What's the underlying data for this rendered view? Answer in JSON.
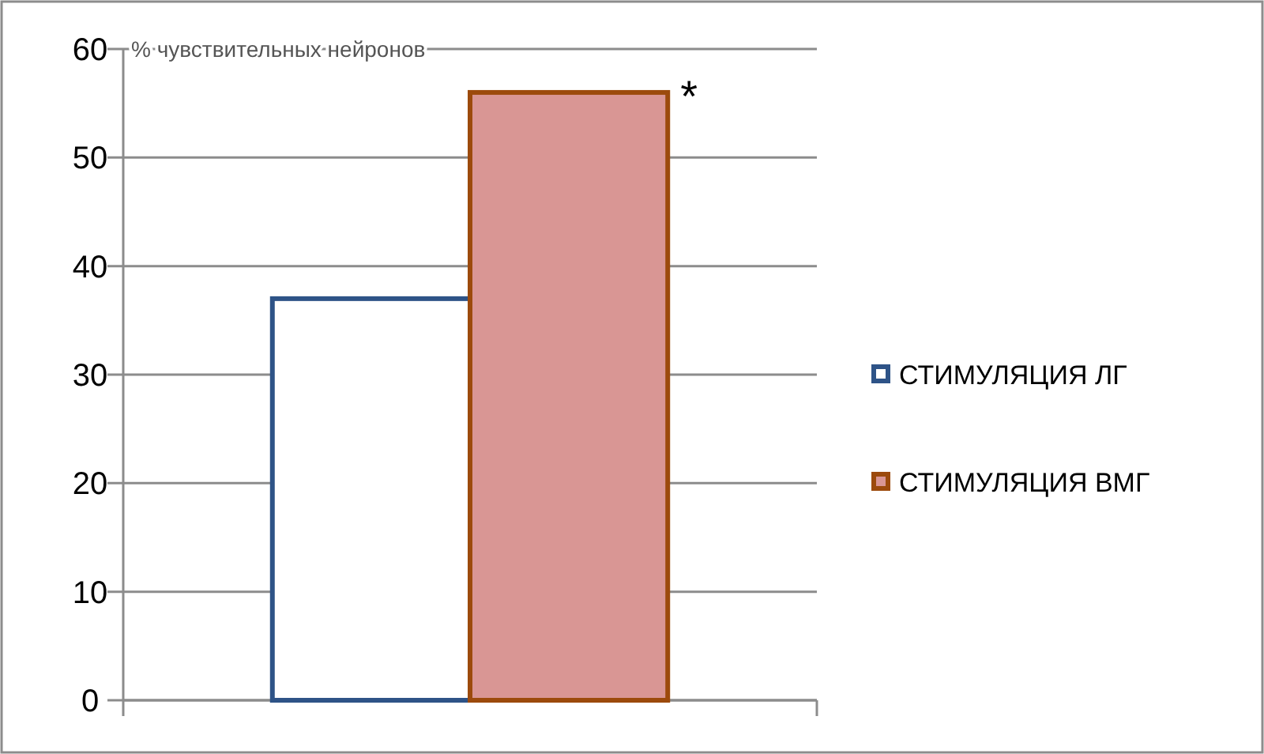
{
  "chart_data": {
    "type": "bar",
    "ylabel": "% чувствительных нейронов",
    "categories": [
      null
    ],
    "series": [
      {
        "name": "СТИМУЛЯЦИЯ ЛГ",
        "color": "#2e5387",
        "values": [
          37
        ]
      },
      {
        "name": "СТИМУЛЯЦИЯ ВМГ",
        "color": "#9c4a0c",
        "values": [
          56
        ]
      }
    ],
    "ylim": [
      0,
      60
    ],
    "yticks": [
      0,
      10,
      20,
      30,
      40,
      50,
      60
    ],
    "grid": "y",
    "legend": "right",
    "annotations": [
      "*"
    ]
  }
}
